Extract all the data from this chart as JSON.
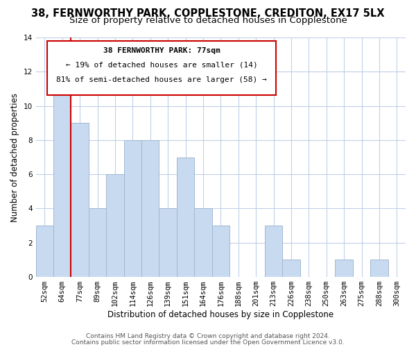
{
  "title": "38, FERNWORTHY PARK, COPPLESTONE, CREDITON, EX17 5LX",
  "subtitle": "Size of property relative to detached houses in Copplestone",
  "xlabel": "Distribution of detached houses by size in Copplestone",
  "ylabel": "Number of detached properties",
  "bin_labels": [
    "52sqm",
    "64sqm",
    "77sqm",
    "89sqm",
    "102sqm",
    "114sqm",
    "126sqm",
    "139sqm",
    "151sqm",
    "164sqm",
    "176sqm",
    "188sqm",
    "201sqm",
    "213sqm",
    "226sqm",
    "238sqm",
    "250sqm",
    "263sqm",
    "275sqm",
    "288sqm",
    "300sqm"
  ],
  "bar_heights": [
    3,
    12,
    9,
    4,
    6,
    8,
    8,
    4,
    7,
    4,
    3,
    0,
    0,
    3,
    1,
    0,
    0,
    1,
    0,
    1,
    0
  ],
  "bar_color": "#c8daf0",
  "bar_edge_color": "#a0b8d0",
  "highlight_line_index": 2,
  "highlight_line_color": "#cc0000",
  "annotation_text_line1": "38 FERNWORTHY PARK: 77sqm",
  "annotation_text_line2": "← 19% of detached houses are smaller (14)",
  "annotation_text_line3": "81% of semi-detached houses are larger (58) →",
  "annotation_box_color": "#ffffff",
  "annotation_box_edge": "#cc0000",
  "ylim": [
    0,
    14
  ],
  "yticks": [
    0,
    2,
    4,
    6,
    8,
    10,
    12,
    14
  ],
  "footer_line1": "Contains HM Land Registry data © Crown copyright and database right 2024.",
  "footer_line2": "Contains public sector information licensed under the Open Government Licence v3.0.",
  "background_color": "#ffffff",
  "grid_color": "#c0d0e8",
  "title_fontsize": 10.5,
  "subtitle_fontsize": 9.5,
  "axis_label_fontsize": 8.5,
  "tick_fontsize": 7.5,
  "footer_fontsize": 6.5,
  "annotation_fontsize": 8.0
}
